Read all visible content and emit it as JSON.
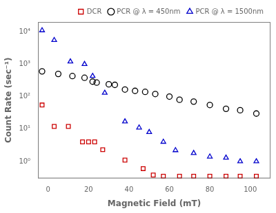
{
  "chart_data": {
    "type": "scatter",
    "xlabel": "Magnetic Field (mT)",
    "ylabel": "Count Rate (sec⁻¹)",
    "log": "y",
    "grid": false,
    "legend": "upper right",
    "xlim": [
      -5,
      110
    ],
    "ylim": [
      0.3,
      20000
    ],
    "xticks": [
      0,
      20,
      40,
      60,
      80,
      100
    ],
    "yticks": [
      {
        "value": 1,
        "label": "10⁰"
      },
      {
        "value": 10,
        "label": "10¹"
      },
      {
        "value": 100,
        "label": "10²"
      },
      {
        "value": 1000,
        "label": "10³"
      },
      {
        "value": 10000,
        "label": "10⁴"
      }
    ],
    "series": [
      {
        "name": "DCR",
        "color": "#cc0000",
        "marker": "square",
        "x": [
          -3,
          3,
          10,
          17,
          20,
          23,
          27,
          38,
          47,
          52,
          57,
          65,
          72,
          80,
          88,
          95,
          103
        ],
        "values": [
          55,
          12,
          12,
          4,
          4,
          4,
          2.3,
          1.1,
          0.6,
          0.38,
          0.35,
          0.35,
          0.35,
          0.35,
          0.35,
          0.35,
          0.35
        ]
      },
      {
        "name": "PCR @ λ = 450nm",
        "color": "#000000",
        "marker": "circle",
        "x": [
          -3,
          5,
          12,
          18,
          22,
          24,
          30,
          33,
          38,
          43,
          48,
          53,
          60,
          65,
          72,
          80,
          88,
          95,
          103
        ],
        "values": [
          600,
          500,
          430,
          380,
          290,
          270,
          240,
          230,
          165,
          150,
          140,
          120,
          100,
          80,
          70,
          55,
          42,
          38,
          30
        ]
      },
      {
        "name": "PCR @ λ = 1500nm",
        "color": "#0000cc",
        "marker": "triangle",
        "x": [
          -3,
          3,
          11,
          18,
          22,
          28,
          38,
          45,
          50,
          57,
          63,
          72,
          80,
          88,
          95,
          103
        ],
        "values": [
          11000,
          5500,
          1200,
          1000,
          430,
          130,
          17,
          11,
          8,
          4,
          2.2,
          1.8,
          1.4,
          1.3,
          1.0,
          1.0
        ]
      }
    ]
  }
}
